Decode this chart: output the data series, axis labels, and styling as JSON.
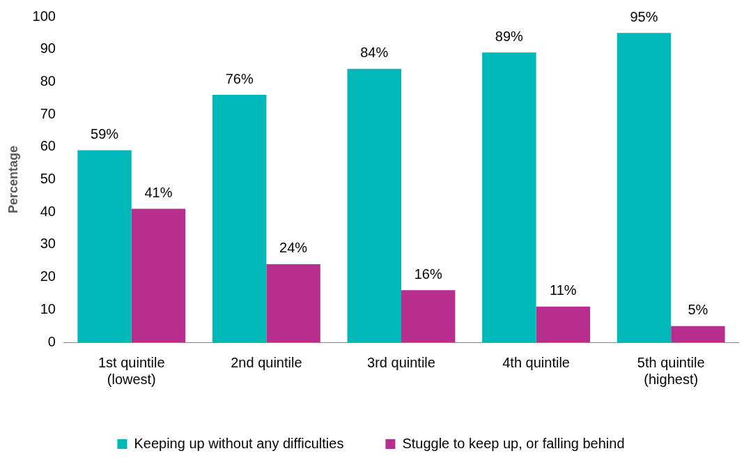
{
  "chart_data": {
    "type": "bar",
    "ylabel": "Percentage",
    "categories": [
      "1st quintile\n(lowest)",
      "2nd quintile",
      "3rd quintile",
      "4th quintile",
      "5th quintile\n(highest)"
    ],
    "series": [
      {
        "name": "Keeping up without any difficulties",
        "color": "#00b8b8",
        "values": [
          59,
          76,
          84,
          89,
          95
        ],
        "value_labels": [
          "59%",
          "76%",
          "84%",
          "89%",
          "95%"
        ]
      },
      {
        "name": "Stuggle to keep up, or falling behind",
        "color": "#b82e8f",
        "values": [
          41,
          24,
          16,
          11,
          5
        ],
        "value_labels": [
          "41%",
          "24%",
          "16%",
          "11%",
          "5%"
        ]
      }
    ],
    "ylim": [
      0,
      100
    ],
    "yticks": [
      0,
      10,
      20,
      30,
      40,
      50,
      60,
      70,
      80,
      90,
      100
    ],
    "grid": false,
    "legend": "bottom"
  }
}
